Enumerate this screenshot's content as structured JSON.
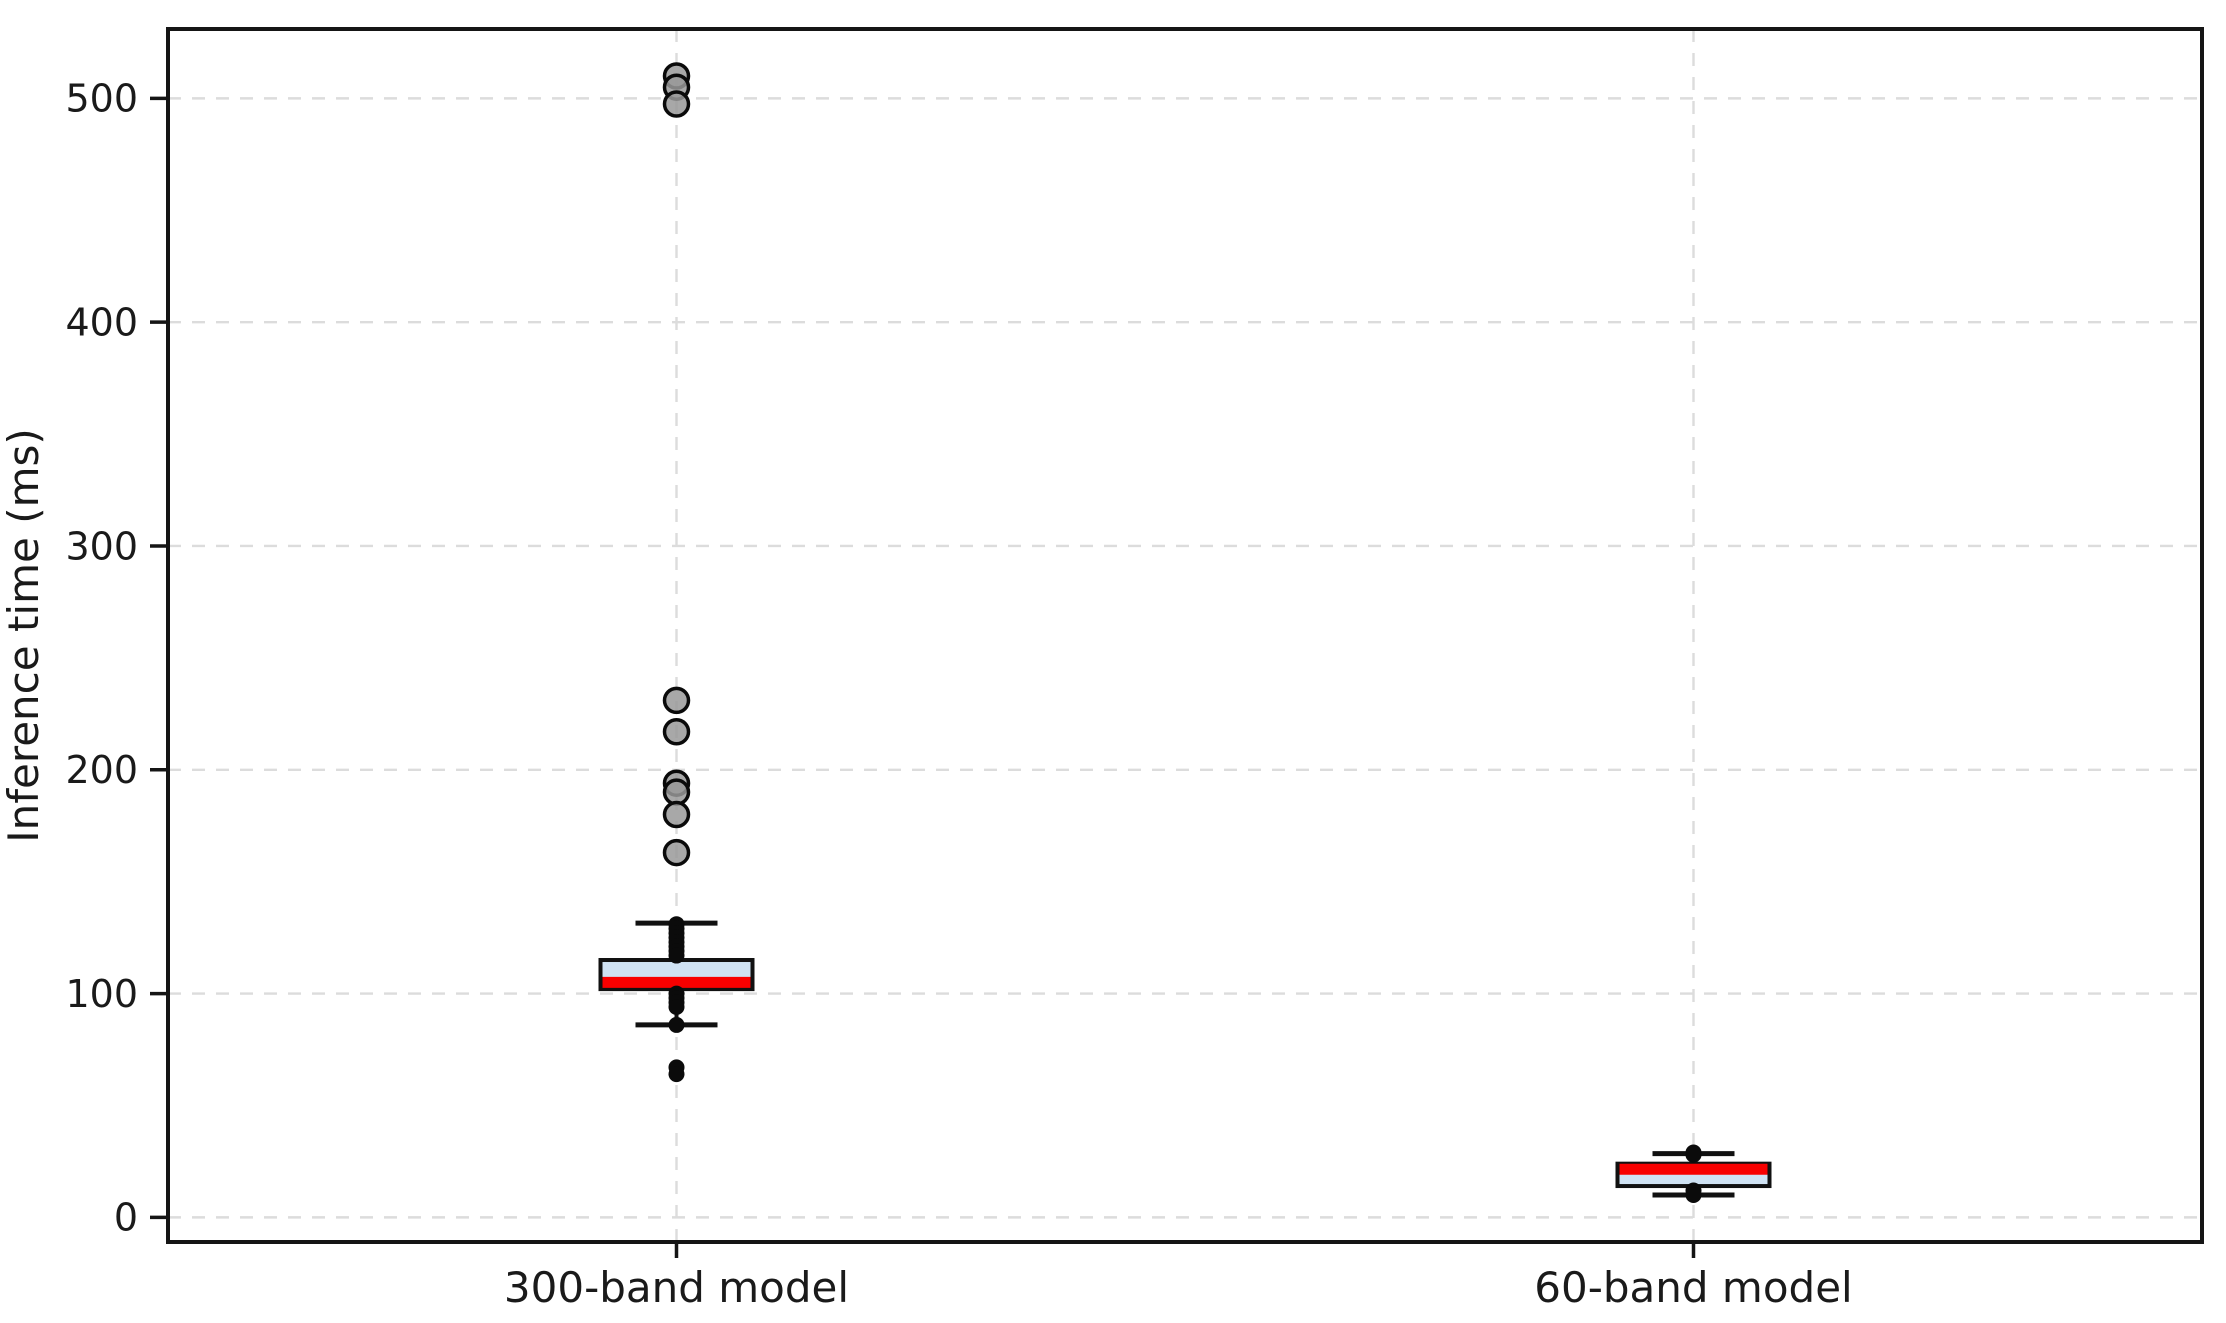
{
  "chart_data": {
    "type": "box",
    "title": "",
    "xlabel": "",
    "ylabel": "Inference time (ms)",
    "yticks": [
      0,
      100,
      200,
      300,
      400,
      500
    ],
    "ytick_labels": [
      "0",
      "100",
      "200",
      "300",
      "400",
      "500"
    ],
    "ylim": [
      -11,
      531
    ],
    "grid": "dashed, horizontal at each ytick plus vertical at each category",
    "legend": "none",
    "categories": [
      "300-band model",
      "60-band model"
    ],
    "boxes": [
      {
        "label": "300-band model",
        "whisker_low": 86,
        "q1": 102,
        "median": 105,
        "q3": 115,
        "whisker_high": 131.5,
        "fliers": [
          510,
          505,
          497.5,
          231,
          217,
          194,
          190,
          180,
          163
        ],
        "points": [
          131,
          129,
          127,
          125,
          123,
          121,
          119,
          117,
          100,
          98,
          96,
          94,
          86,
          67,
          64
        ]
      },
      {
        "label": "60-band model",
        "whisker_low": 10,
        "q1": 14,
        "median": 21.5,
        "q3": 24,
        "whisker_high": 28.5,
        "fliers": [],
        "points": [
          29,
          28,
          12,
          10
        ]
      }
    ],
    "colors": {
      "background": "#ffffff",
      "box_fill": "#cfe2f3",
      "box_edge": "#111111",
      "median_line": "#f80000",
      "whisker": "#111111",
      "flier_fill": "#999999",
      "flier_edge": "#0a0a0a",
      "data_point": "#0b0b0b",
      "gridline": "#dcdcdc",
      "spine": "#151515",
      "tick_label": "#1a1a1a"
    }
  }
}
